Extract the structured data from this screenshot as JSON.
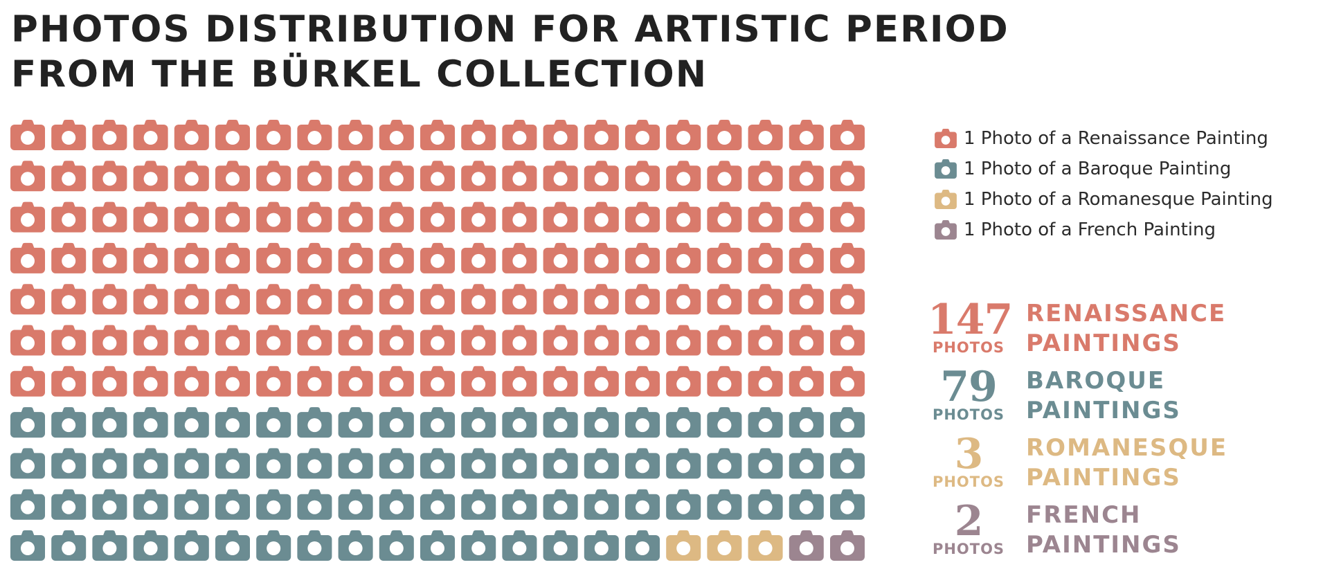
{
  "title_lines": [
    "PHOTOS DISTRIBUTION FOR ARTISTIC PERIOD",
    "FROM THE BÜRKEL COLLECTION"
  ],
  "icon": "camera-icon",
  "chart_data": {
    "type": "waffle",
    "unit": "1 Photo",
    "columns": 21,
    "rows": 11,
    "series": [
      {
        "name": "Renaissance",
        "legend": "1 Photo of a Renaissance Painting",
        "value": 147,
        "color": "#D97A6B",
        "unit_label": "PHOTOS",
        "category_lines": [
          "RENAISSANCE",
          "PAINTINGS"
        ]
      },
      {
        "name": "Baroque",
        "legend": "1 Photo of a Baroque Painting",
        "value": 79,
        "color": "#6B8C92",
        "unit_label": "PHOTOS",
        "category_lines": [
          "BAROQUE",
          "PAINTINGS"
        ]
      },
      {
        "name": "Romanesque",
        "legend": "1 Photo of a Romanesque Painting",
        "value": 3,
        "color": "#DDB983",
        "unit_label": "PHOTOS",
        "category_lines": [
          "ROMANESQUE",
          "PAINTINGS"
        ]
      },
      {
        "name": "French",
        "legend": "1 Photo of a French Painting",
        "value": 2,
        "color": "#9C8590",
        "unit_label": "PHOTOS",
        "category_lines": [
          "FRENCH",
          "PAINTINGS"
        ]
      }
    ],
    "legend_position": "right"
  }
}
